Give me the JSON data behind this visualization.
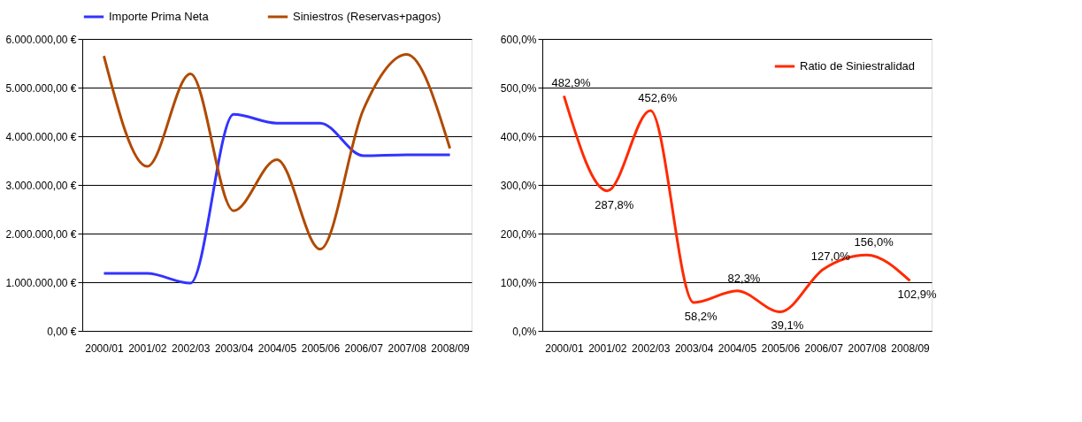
{
  "chart_data": [
    {
      "type": "line",
      "categories": [
        "2000/01",
        "2001/02",
        "2002/03",
        "2003/04",
        "2004/05",
        "2005/06",
        "2006/07",
        "2007/08",
        "2008/09"
      ],
      "series": [
        {
          "name": "Importe Prima Neta",
          "color": "#3333ff",
          "values": [
            1180000,
            1180000,
            980000,
            4450000,
            4270000,
            4270000,
            3600000,
            3620000,
            3620000
          ]
        },
        {
          "name": "Siniestros (Reservas+pagos)",
          "color": "#b04a00",
          "values": [
            5650000,
            3380000,
            5280000,
            2470000,
            3520000,
            1680000,
            4550000,
            5680000,
            3750000
          ]
        }
      ],
      "ylim": [
        0,
        6000000
      ],
      "yticks": [
        {
          "value": 0,
          "label": "0,00 €"
        },
        {
          "value": 1000000,
          "label": "1.000.000,00 €"
        },
        {
          "value": 2000000,
          "label": "2.000.000,00 €"
        },
        {
          "value": 3000000,
          "label": "3.000.000,00 €"
        },
        {
          "value": 4000000,
          "label": "4.000.000,00 €"
        },
        {
          "value": 5000000,
          "label": "5.000.000,00 €"
        },
        {
          "value": 6000000,
          "label": "6.000.000,00 €"
        }
      ],
      "grid": "y",
      "legend": "top",
      "line_style": "solid"
    },
    {
      "type": "line",
      "categories": [
        "2000/01",
        "2001/02",
        "2002/03",
        "2003/04",
        "2004/05",
        "2005/06",
        "2006/07",
        "2007/08",
        "2008/09"
      ],
      "series": [
        {
          "name": "Ratio de Siniestralidad",
          "color": "#ff2a00",
          "values": [
            482.9,
            287.8,
            452.6,
            58.2,
            82.3,
            39.1,
            127.0,
            156.0,
            102.9
          ],
          "value_labels": [
            "482,9%",
            "287,8%",
            "452,6%",
            "58,2%",
            "82,3%",
            "39,1%",
            "127,0%",
            "156,0%",
            "102,9%"
          ]
        }
      ],
      "ylim": [
        0,
        600
      ],
      "yticks": [
        {
          "value": 0,
          "label": "0,0%"
        },
        {
          "value": 100,
          "label": "100,0%"
        },
        {
          "value": 200,
          "label": "200,0%"
        },
        {
          "value": 300,
          "label": "300,0%"
        },
        {
          "value": 400,
          "label": "400,0%"
        },
        {
          "value": 500,
          "label": "500,0%"
        },
        {
          "value": 600,
          "label": "600,0%"
        }
      ],
      "grid": "y",
      "legend": "top right",
      "line_style": "solid"
    }
  ]
}
